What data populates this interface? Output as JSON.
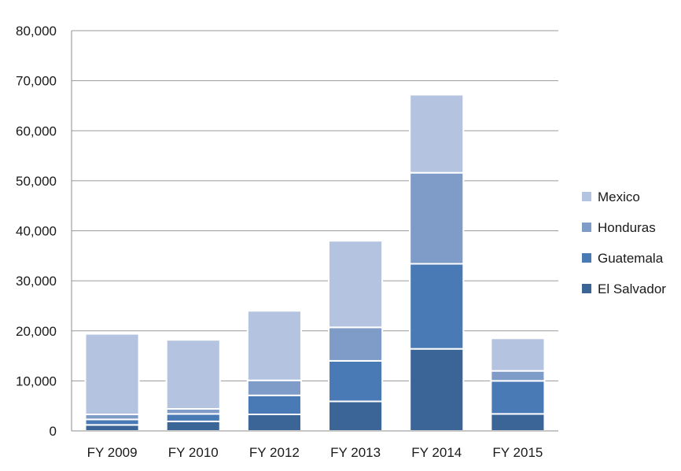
{
  "chart_data": {
    "type": "bar",
    "stacked": true,
    "categories": [
      "FY 2009",
      "FY 2010",
      "FY 2012",
      "FY 2013",
      "FY 2014",
      "FY 2015"
    ],
    "series": [
      {
        "name": "El Salvador",
        "color": "#3b6497",
        "values": [
          1200,
          1900,
          3300,
          5900,
          16400,
          3400
        ]
      },
      {
        "name": "Guatemala",
        "color": "#4a7ab5",
        "values": [
          1100,
          1500,
          3800,
          8100,
          17000,
          6600
        ]
      },
      {
        "name": "Honduras",
        "color": "#7f9cc8",
        "values": [
          1000,
          1000,
          3000,
          6700,
          18200,
          2000
        ]
      },
      {
        "name": "Mexico",
        "color": "#b4c3df",
        "values": [
          16100,
          13800,
          13900,
          17300,
          15600,
          6500
        ]
      }
    ],
    "ylim": [
      0,
      80000
    ],
    "yticks": [
      0,
      10000,
      20000,
      30000,
      40000,
      50000,
      60000,
      70000,
      80000
    ],
    "ytick_labels": [
      "0",
      "10,000",
      "20,000",
      "30,000",
      "40,000",
      "50,000",
      "60,000",
      "70,000",
      "80,000"
    ],
    "grid": true,
    "legend_position": "right",
    "legend_order": [
      "Mexico",
      "Honduras",
      "Guatemala",
      "El Salvador"
    ],
    "title": "",
    "xlabel": "",
    "ylabel": "",
    "gridline_color": "#9a9a9a",
    "axis_color": "#8c8c8c"
  }
}
